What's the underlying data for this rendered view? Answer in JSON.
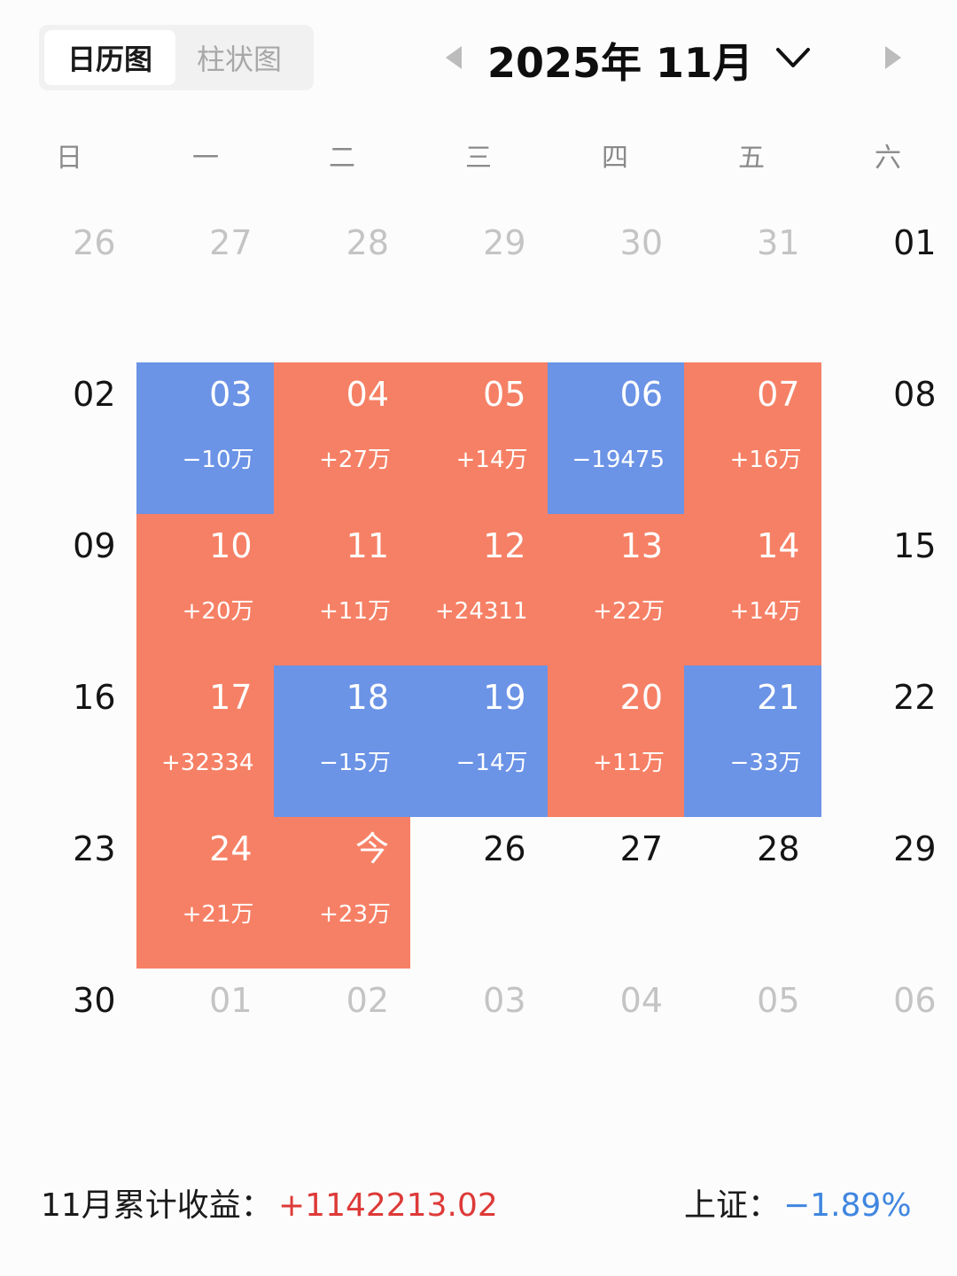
{
  "tabs": [
    {
      "label": "日历图",
      "active": true
    },
    {
      "label": "柱状图",
      "active": false
    }
  ],
  "month_nav": {
    "title": "2025年 11月",
    "prev_icon": "triangle-left-icon",
    "next_icon": "triangle-right-icon",
    "dropdown_icon": "chevron-down-icon"
  },
  "weekdays": [
    "日",
    "一",
    "二",
    "三",
    "四",
    "五",
    "六"
  ],
  "colors": {
    "gain": "#f68065",
    "loss": "#6b93e6",
    "total_value": "#dd3a38",
    "index_value": "#3f86e0"
  },
  "weeks": [
    [
      {
        "day": "26",
        "kind": "other"
      },
      {
        "day": "27",
        "kind": "other"
      },
      {
        "day": "28",
        "kind": "other"
      },
      {
        "day": "29",
        "kind": "other"
      },
      {
        "day": "30",
        "kind": "other"
      },
      {
        "day": "31",
        "kind": "other"
      },
      {
        "day": "01",
        "kind": "plain"
      }
    ],
    [
      {
        "day": "02",
        "kind": "plain"
      },
      {
        "day": "03",
        "kind": "loss",
        "pnl": "−10万"
      },
      {
        "day": "04",
        "kind": "gain",
        "pnl": "+27万"
      },
      {
        "day": "05",
        "kind": "gain",
        "pnl": "+14万"
      },
      {
        "day": "06",
        "kind": "loss",
        "pnl": "−19475"
      },
      {
        "day": "07",
        "kind": "gain",
        "pnl": "+16万"
      },
      {
        "day": "08",
        "kind": "plain"
      }
    ],
    [
      {
        "day": "09",
        "kind": "plain"
      },
      {
        "day": "10",
        "kind": "gain",
        "pnl": "+20万"
      },
      {
        "day": "11",
        "kind": "gain",
        "pnl": "+11万"
      },
      {
        "day": "12",
        "kind": "gain",
        "pnl": "+24311"
      },
      {
        "day": "13",
        "kind": "gain",
        "pnl": "+22万"
      },
      {
        "day": "14",
        "kind": "gain",
        "pnl": "+14万"
      },
      {
        "day": "15",
        "kind": "plain"
      }
    ],
    [
      {
        "day": "16",
        "kind": "plain"
      },
      {
        "day": "17",
        "kind": "gain",
        "pnl": "+32334"
      },
      {
        "day": "18",
        "kind": "loss",
        "pnl": "−15万"
      },
      {
        "day": "19",
        "kind": "loss",
        "pnl": "−14万"
      },
      {
        "day": "20",
        "kind": "gain",
        "pnl": "+11万"
      },
      {
        "day": "21",
        "kind": "loss",
        "pnl": "−33万"
      },
      {
        "day": "22",
        "kind": "plain"
      }
    ],
    [
      {
        "day": "23",
        "kind": "plain"
      },
      {
        "day": "24",
        "kind": "gain",
        "pnl": "+21万"
      },
      {
        "day": "今",
        "kind": "gain",
        "pnl": "+23万"
      },
      {
        "day": "26",
        "kind": "plain"
      },
      {
        "day": "27",
        "kind": "plain"
      },
      {
        "day": "28",
        "kind": "plain"
      },
      {
        "day": "29",
        "kind": "plain"
      }
    ],
    [
      {
        "day": "30",
        "kind": "plain"
      },
      {
        "day": "01",
        "kind": "other"
      },
      {
        "day": "02",
        "kind": "other"
      },
      {
        "day": "03",
        "kind": "other"
      },
      {
        "day": "04",
        "kind": "other"
      },
      {
        "day": "05",
        "kind": "other"
      },
      {
        "day": "06",
        "kind": "other"
      }
    ]
  ],
  "summary": {
    "total_label": "11月累计收益：",
    "total_value": "+1142213.02",
    "index_label": "上证：",
    "index_value": "−1.89%"
  }
}
